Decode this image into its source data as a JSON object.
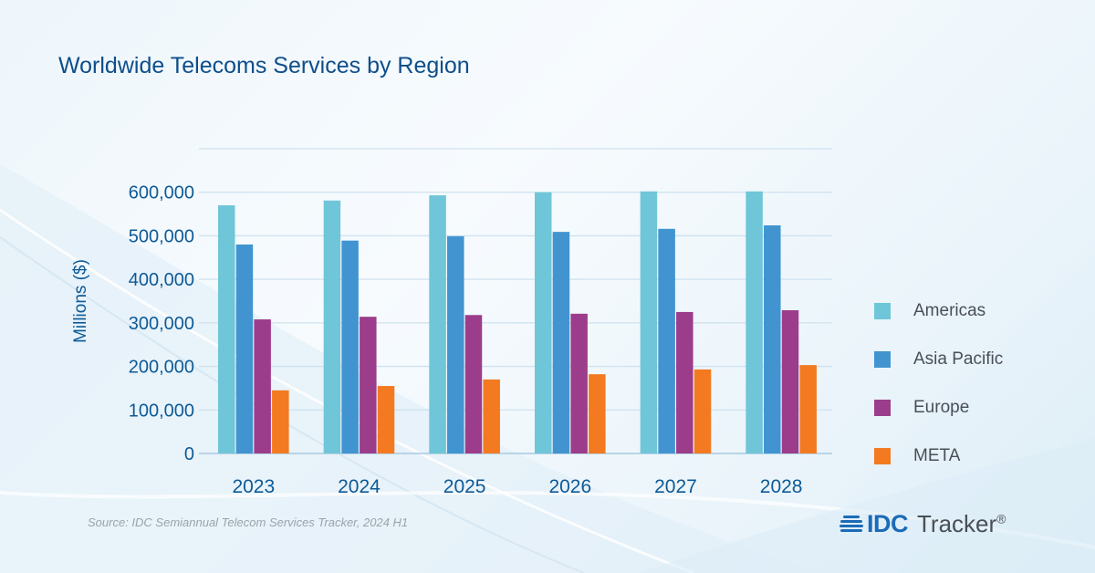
{
  "chart_data": {
    "type": "bar",
    "title": "Worldwide Telecoms Services by Region",
    "xlabel": "",
    "ylabel": "Millions ($)",
    "ylim": [
      0,
      700000
    ],
    "yticks": [
      0,
      100000,
      200000,
      300000,
      400000,
      500000,
      600000
    ],
    "ytick_labels": [
      "0",
      "100,000",
      "200,000",
      "300,000",
      "400,000",
      "500,000",
      "600,000"
    ],
    "grid": true,
    "legend_position": "right",
    "categories": [
      "2023",
      "2024",
      "2025",
      "2026",
      "2027",
      "2028"
    ],
    "series": [
      {
        "name": "Americas",
        "color": "#6fc6d8",
        "values": [
          570000,
          581000,
          593000,
          600000,
          602000,
          602000
        ]
      },
      {
        "name": "Asia Pacific",
        "color": "#4194d0",
        "values": [
          480000,
          489000,
          499000,
          509000,
          516000,
          524000
        ]
      },
      {
        "name": "Europe",
        "color": "#9c3d8b",
        "values": [
          308000,
          314000,
          318000,
          321000,
          325000,
          329000
        ]
      },
      {
        "name": "META",
        "color": "#f37a20",
        "values": [
          145000,
          155000,
          170000,
          182000,
          193000,
          203000
        ]
      }
    ]
  },
  "footer": {
    "source": "Source: IDC Semiannual Telecom Services Tracker, 2024 H1",
    "logo_brand": "IDC",
    "logo_product": "Tracker",
    "logo_mark": "®"
  },
  "colors": {
    "title": "#0e4e8a",
    "axis_text": "#0e5a96",
    "gridline": "#cfe2ee",
    "brand_blue": "#1c6bb8"
  }
}
